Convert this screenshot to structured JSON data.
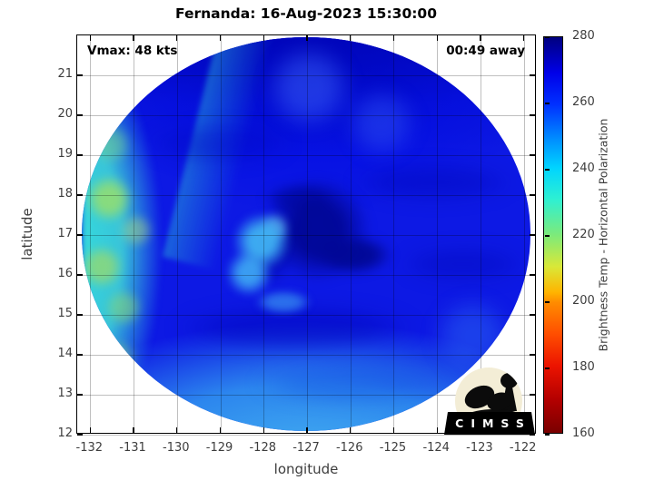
{
  "figure": {
    "title": "Fernanda: 16-Aug-2023 15:30:00",
    "annotation_left": "Vmax: 48 kts",
    "annotation_right": "00:49 away",
    "xlabel": "longitude",
    "ylabel": "latitude",
    "logo_text": "CIMSS"
  },
  "chart_data": {
    "type": "heatmap",
    "title": "Fernanda: 16-Aug-2023 15:30:00",
    "annotations": [
      {
        "text": "Vmax: 48 kts",
        "position": "top-left"
      },
      {
        "text": "00:49 away",
        "position": "top-right"
      }
    ],
    "xlabel": "longitude",
    "ylabel": "latitude",
    "xlim": [
      -132.3,
      -121.7
    ],
    "ylim": [
      12,
      22
    ],
    "x_ticks": [
      -132,
      -131,
      -130,
      -129,
      -128,
      -127,
      -126,
      -125,
      -124,
      -123,
      -122
    ],
    "y_ticks": [
      12,
      13,
      14,
      15,
      16,
      17,
      18,
      19,
      20,
      21
    ],
    "grid": true,
    "legend_position": "none",
    "swath": {
      "shape": "circular microwave satellite swath",
      "center_lon": -127.0,
      "center_lat": 17.0,
      "radius_deg": 5.1,
      "features": [
        {
          "region": "eye / eyewall swirl near (-127.0, 17.1)",
          "approx_value_K": 277
        },
        {
          "region": "main swath body (blue)",
          "approx_value_K": 262
        },
        {
          "region": "western edge crescent, lon < -130.5 (cyan with green patches)",
          "approx_value_K": 237
        },
        {
          "region": "southern rim, lat < 13.5 (lighter blue)",
          "approx_value_K": 249
        },
        {
          "region": "light patch west of eye near (-128.0, 17.0)",
          "approx_value_K": 252
        },
        {
          "region": "northern sector, lat > 20 (deep blue)",
          "approx_value_K": 271
        }
      ]
    },
    "colorbar": {
      "label": "Brightness Temp - Horizontal Polarization",
      "min": 160,
      "max": 280,
      "ticks": [
        160,
        180,
        200,
        220,
        240,
        260,
        280
      ],
      "colormap": "jet (280 K dark blue at top to 160 K dark red at bottom)",
      "gradient_stops_top_to_bottom": [
        [
          0,
          "#00007f"
        ],
        [
          0.09,
          "#0000e8"
        ],
        [
          0.17,
          "#0030ff"
        ],
        [
          0.26,
          "#0090ff"
        ],
        [
          0.33,
          "#00d4ff"
        ],
        [
          0.41,
          "#2ef0d2"
        ],
        [
          0.5,
          "#7dea7a"
        ],
        [
          0.58,
          "#d9e838"
        ],
        [
          0.645,
          "#ffb400"
        ],
        [
          0.67,
          "#ff8c00"
        ],
        [
          0.75,
          "#ff4e00"
        ],
        [
          0.83,
          "#ec1400"
        ],
        [
          0.915,
          "#b40000"
        ],
        [
          1,
          "#7a0000"
        ]
      ]
    }
  },
  "colors": {
    "background": "#ffffff",
    "axis": "#000000",
    "tick_label": "#3d3d3d",
    "grid": "rgba(0,0,0,0.25)",
    "swath_base_blue": "#0d19e4",
    "west_crescent_cyan": "#34e0dc",
    "eye_dark_blue": "#010796",
    "south_rim_light_blue": "#45b2f0",
    "logo_circle": "#f3edd6",
    "logo_silhouette": "#0b0b0b"
  }
}
